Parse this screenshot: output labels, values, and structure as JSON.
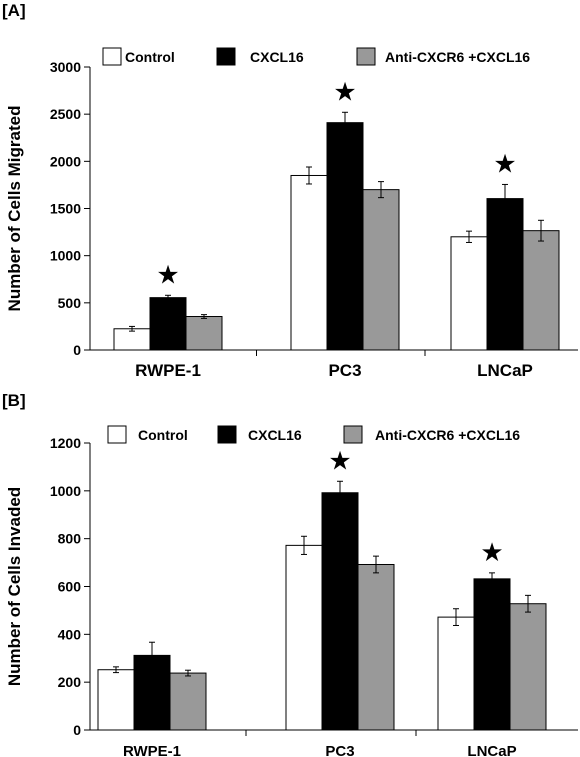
{
  "chart_data": [
    {
      "panel_label": "[A]",
      "type": "bar",
      "ylabel": "Number of Cells Migrated",
      "xlabel": "",
      "ylim": [
        0,
        3000
      ],
      "yticks": [
        0,
        500,
        1000,
        1500,
        2000,
        2500,
        3000
      ],
      "categories": [
        "RWPE-1",
        "PC3",
        "LNCaP"
      ],
      "legend_position": "top",
      "series": [
        {
          "name": "Control",
          "color": "#ffffff",
          "values": [
            225,
            1850,
            1200
          ],
          "errors": [
            25,
            90,
            60
          ]
        },
        {
          "name": "CXCL16",
          "color": "#000000",
          "values": [
            555,
            2410,
            1605
          ],
          "errors": [
            25,
            110,
            150
          ]
        },
        {
          "name": "Anti-CXCR6 +CXCL16",
          "color": "#999999",
          "values": [
            355,
            1700,
            1265
          ],
          "errors": [
            20,
            85,
            110
          ]
        }
      ],
      "significance_marks": [
        {
          "category": "RWPE-1",
          "series": "CXCL16",
          "symbol": "★"
        },
        {
          "category": "PC3",
          "series": "CXCL16",
          "symbol": "★"
        },
        {
          "category": "LNCaP",
          "series": "CXCL16",
          "symbol": "★"
        }
      ]
    },
    {
      "panel_label": "[B]",
      "type": "bar",
      "ylabel": "Number of Cells Invaded",
      "xlabel": "",
      "ylim": [
        0,
        1200
      ],
      "yticks": [
        0,
        200,
        400,
        600,
        800,
        1000,
        1200
      ],
      "categories": [
        "RWPE-1",
        "PC3",
        "LNCaP"
      ],
      "legend_position": "top",
      "series": [
        {
          "name": "Control",
          "color": "#ffffff",
          "values": [
            252,
            772,
            472
          ],
          "errors": [
            12,
            38,
            35
          ]
        },
        {
          "name": "CXCL16",
          "color": "#000000",
          "values": [
            312,
            992,
            632
          ],
          "errors": [
            55,
            48,
            25
          ]
        },
        {
          "name": "Anti-CXCR6 +CXCL16",
          "color": "#999999",
          "values": [
            238,
            692,
            528
          ],
          "errors": [
            12,
            35,
            35
          ]
        }
      ],
      "significance_marks": [
        {
          "category": "PC3",
          "series": "CXCL16",
          "symbol": "★"
        },
        {
          "category": "LNCaP",
          "series": "CXCL16",
          "symbol": "★"
        }
      ]
    }
  ]
}
